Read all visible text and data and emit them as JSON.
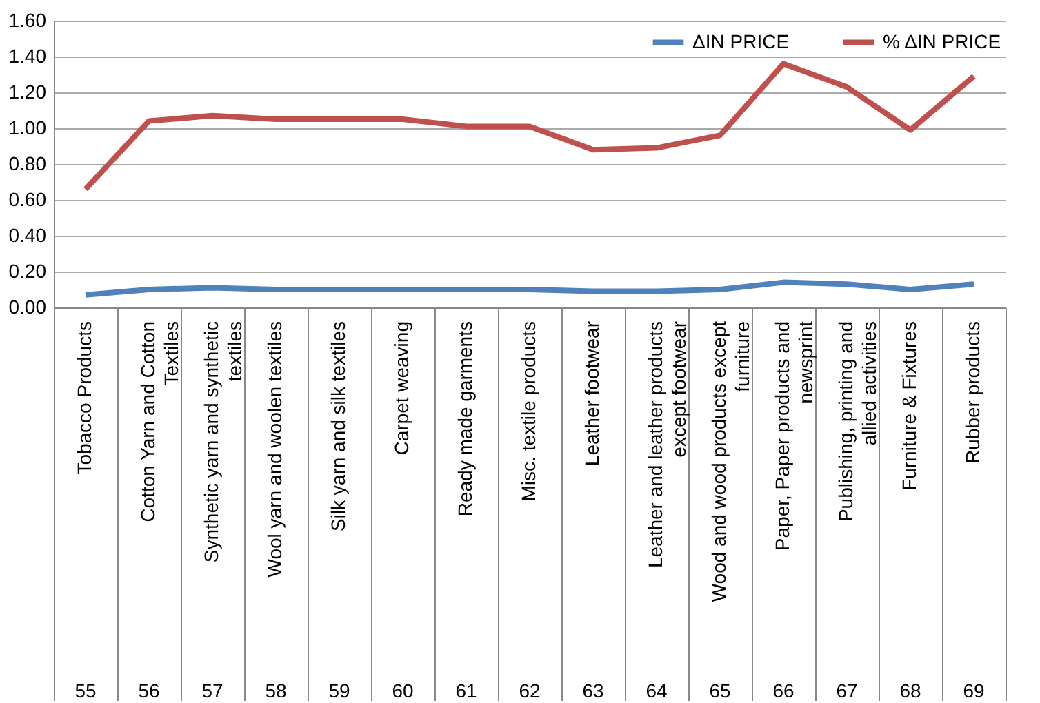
{
  "chart_data": {
    "type": "line",
    "categories": [
      "Tobacco Products",
      "Cotton Yarn and Cotton Textiles",
      "Synthetic yarn and synthetic textiles",
      "Wool yarn and woolen textiles",
      "Silk yarn and silk textiles",
      "Carpet weaving",
      "Ready made garments",
      "Misc. textile products",
      "Leather footwear",
      "Leather and leather products except footwear",
      "Wood and wood products except furniture",
      "Paper, Paper products and newsprint",
      "Publishing, printing and allied activities",
      "Furniture & Fixtures",
      "Rubber products"
    ],
    "series": [
      {
        "name": "ΔIN PRICE",
        "color": "#4f81bd",
        "values": [
          0.07,
          0.1,
          0.11,
          0.1,
          0.1,
          0.1,
          0.1,
          0.1,
          0.09,
          0.09,
          0.1,
          0.14,
          0.13,
          0.1,
          0.13
        ]
      },
      {
        "name": "% ΔIN PRICE",
        "color": "#c0504d",
        "values": [
          0.66,
          1.04,
          1.07,
          1.05,
          1.05,
          1.05,
          1.01,
          1.01,
          0.88,
          0.89,
          0.96,
          1.36,
          1.23,
          0.99,
          1.29
        ]
      }
    ],
    "ylim": [
      0,
      1.6
    ],
    "yticks": [
      {
        "value": 0,
        "label": "0.00"
      },
      {
        "value": 0.2,
        "label": "0.20"
      },
      {
        "value": 0.4,
        "label": "0.40"
      },
      {
        "value": 0.6,
        "label": "0.60"
      },
      {
        "value": 0.8,
        "label": "0.80"
      },
      {
        "value": 1.0,
        "label": "1.00"
      },
      {
        "value": 1.2,
        "label": "1.20"
      },
      {
        "value": 1.4,
        "label": "1.40"
      },
      {
        "value": 1.6,
        "label": "1.60"
      }
    ],
    "grid": "y",
    "legend": "top right",
    "annotations": [
      "55",
      "56",
      "57",
      "58",
      "59",
      "60",
      "61",
      "62",
      "63",
      "64",
      "65",
      "66",
      "67",
      "68",
      "69"
    ]
  }
}
